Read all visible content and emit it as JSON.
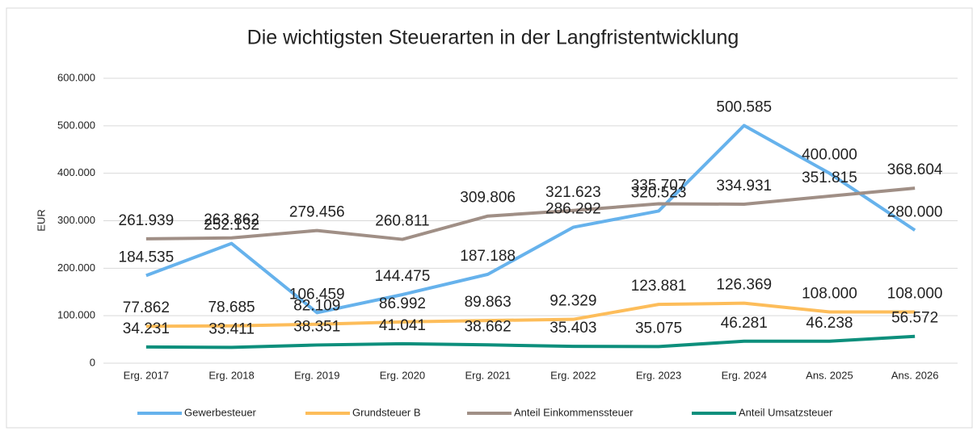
{
  "chart_data": {
    "type": "line",
    "title": "Die wichtigsten Steuerarten in der Langfristentwicklung",
    "ylabel": "EUR",
    "categories": [
      "Erg. 2017",
      "Erg. 2018",
      "Erg. 2019",
      "Erg. 2020",
      "Erg. 2021",
      "Erg. 2022",
      "Erg. 2023",
      "Erg. 2024",
      "Ans. 2025",
      "Ans. 2026"
    ],
    "series": [
      {
        "name": "Gewerbesteuer",
        "color": "#66b2ec",
        "values": [
          184535,
          252132,
          106459,
          144475,
          187188,
          286292,
          320523,
          500585,
          400000,
          280000
        ],
        "value_labels": [
          "184.535",
          "252.132",
          "106.459",
          "144.475",
          "187.188",
          "286.292",
          "320.523",
          "500.585",
          "400.000",
          "280.000"
        ]
      },
      {
        "name": "Grundsteuer B",
        "color": "#fdbd5a",
        "values": [
          77862,
          78685,
          82109,
          86992,
          89863,
          92329,
          123881,
          126369,
          108000,
          108000
        ],
        "value_labels": [
          "77.862",
          "78.685",
          "82.109",
          "86.992",
          "89.863",
          "92.329",
          "123.881",
          "126.369",
          "108.000",
          "108.000"
        ]
      },
      {
        "name": "Anteil Einkommenssteuer",
        "color": "#a08f86",
        "values": [
          261939,
          263862,
          279456,
          260811,
          309806,
          321623,
          335707,
          334931,
          351815,
          368604
        ],
        "value_labels": [
          "261.939",
          "263.862",
          "279.456",
          "260.811",
          "309.806",
          "321.623",
          "335.707",
          "334.931",
          "351.815",
          "368.604"
        ]
      },
      {
        "name": "Anteil Umsatzsteuer",
        "color": "#0d8f7c",
        "values": [
          34231,
          33411,
          38351,
          41041,
          38662,
          35403,
          35075,
          46281,
          46238,
          56572
        ],
        "value_labels": [
          "34.231",
          "33.411",
          "38.351",
          "41.041",
          "38.662",
          "35.403",
          "35.075",
          "46.281",
          "46.238",
          "56.572"
        ]
      }
    ],
    "ylim": [
      0,
      600000
    ],
    "yticks": [
      0,
      {
        "value": 100000,
        "label": "100.000"
      },
      {
        "value": 200000,
        "label": "200.000"
      },
      {
        "value": 300000,
        "label": "300.000"
      },
      {
        "value": 400000,
        "label": "400.000"
      },
      {
        "value": 500000,
        "label": "500.000"
      },
      {
        "value": 600000,
        "label": "600.000"
      }
    ],
    "grid": true,
    "legend": "bottom"
  }
}
